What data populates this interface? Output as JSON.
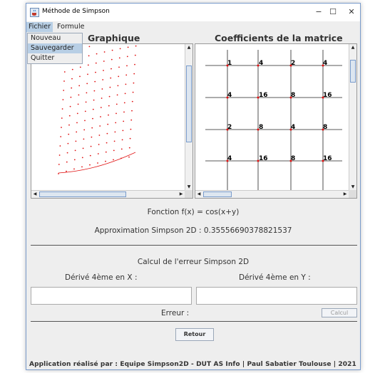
{
  "window": {
    "title": "Méthode de Simpson",
    "minimize": "−",
    "maximize": "☐",
    "close": "✕"
  },
  "menu": {
    "fichier": "Fichier",
    "formule": "Formule",
    "dropdown": [
      "Nouveau",
      "Sauvegarder",
      "Quitter"
    ]
  },
  "panels": {
    "graph_title": "Graphique",
    "matrix_title": "Coefficients de la matrice"
  },
  "matrix": [
    [
      "1",
      "4",
      "2",
      "4"
    ],
    [
      "4",
      "16",
      "8",
      "16"
    ],
    [
      "2",
      "8",
      "4",
      "8"
    ],
    [
      "4",
      "16",
      "8",
      "16"
    ]
  ],
  "function_text": "Fonction f(x) = cos(x+y)",
  "approximation_text": "Approximation Simpson 2D : 0.35556690378821537",
  "error_section": {
    "title": "Calcul de l'erreur Simpson 2D",
    "derive_x": "Dérivé 4ème en X :",
    "derive_y": "Dérivé 4ème en Y :",
    "input_x_value": "",
    "input_y_value": "",
    "erreur_label": "Erreur :",
    "calcul_button": "Calcul"
  },
  "retour_button": "Retour",
  "footer": "Application réalisé par : Equipe Simpson2D - DUT AS Info | Paul Sabatier Toulouse | 2021",
  "colors": {
    "accent": "#b8cfe5",
    "point": "#e01010"
  }
}
